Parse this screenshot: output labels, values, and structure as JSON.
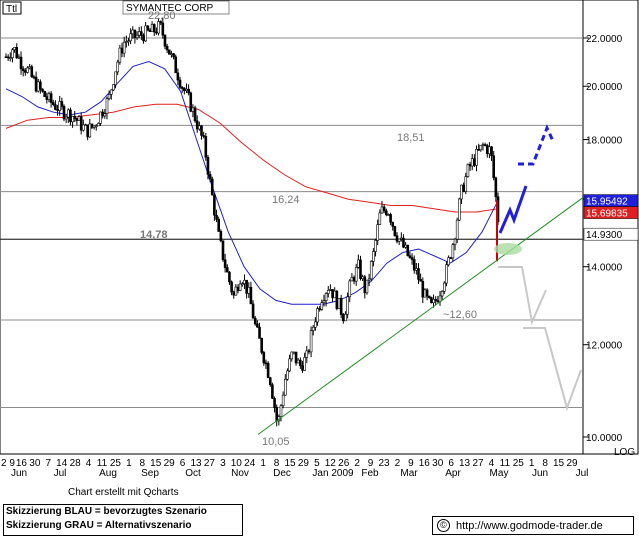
{
  "chart_data": {
    "type": "candlestick",
    "title": "SYMANTEC CORP",
    "header_box": "Ttl",
    "scale_label": "LOG",
    "y_ticks": [
      "22.0000",
      "20.0000",
      "18.0000",
      "16.0000",
      "14.0000",
      "12.0000",
      "10.0000"
    ],
    "ylim": [
      10.0,
      22.4
    ],
    "x_tick_numbers": [
      "2 9",
      "16",
      "30",
      "7",
      "14",
      "28",
      "4",
      "11",
      "25",
      "1",
      "8",
      "15",
      "29",
      "6",
      "13",
      "27",
      "3",
      "10",
      "24",
      "1",
      "8",
      "15",
      "29",
      "5",
      "12",
      "26",
      "2",
      "9",
      "23",
      "2",
      "9",
      "16",
      "30",
      "6",
      "13",
      "27",
      "4",
      "11",
      "25",
      "1",
      "8",
      "15",
      "29"
    ],
    "x_month_labels": [
      "Jun",
      "Jul",
      "Aug",
      "Sep",
      "Oct",
      "Nov",
      "Dec",
      "Jan 2009",
      "Feb",
      "Mar",
      "Apr",
      "May",
      "Jun",
      "Jul"
    ],
    "levels": [
      {
        "label": "22,80",
        "value": 22.8
      },
      {
        "label": "18,51",
        "value": 18.51
      },
      {
        "label": "16,24",
        "value": 16.24
      },
      {
        "label": "14,78",
        "value": 14.78
      },
      {
        "label": "~12,60",
        "value": 12.6
      },
      {
        "label": "10,05",
        "value": 10.05
      }
    ],
    "price_boxes": [
      {
        "label": "15.95492",
        "bg": "#1f1fdc",
        "fg": "#ffffff"
      },
      {
        "label": "15.69835",
        "bg": "#e02020",
        "fg": "#ffffff"
      },
      {
        "label": "14.9300",
        "bg": "#ffffff",
        "fg": "#000000"
      }
    ],
    "close_series": [
      21.2,
      21.6,
      21.0,
      20.6,
      20.1,
      19.7,
      19.4,
      19.2,
      19.0,
      18.9,
      18.6,
      18.3,
      18.5,
      19.0,
      19.5,
      20.8,
      21.8,
      22.0,
      22.1,
      22.2,
      22.3,
      22.5,
      21.6,
      20.8,
      20.0,
      19.4,
      18.6,
      17.8,
      16.2,
      14.8,
      13.9,
      13.2,
      13.8,
      13.3,
      12.4,
      11.8,
      11.2,
      10.2,
      11.2,
      11.8,
      11.5,
      11.7,
      12.6,
      13.2,
      13.5,
      13.1,
      12.7,
      13.6,
      14.0,
      13.3,
      14.3,
      15.6,
      15.7,
      15.0,
      14.6,
      14.2,
      13.8,
      13.2,
      12.9,
      13.3,
      13.9,
      14.8,
      16.2,
      17.0,
      17.4,
      17.8,
      17.6,
      15.4
    ],
    "ma_blue": [
      19.9,
      19.6,
      19.2,
      19.0,
      18.9,
      19.0,
      19.4,
      20.1,
      20.8,
      21.0,
      20.7,
      19.8,
      18.0,
      16.4,
      15.0,
      14.0,
      13.4,
      13.1,
      13.0,
      13.0,
      13.0,
      13.1,
      13.3,
      13.6,
      14.1,
      14.4,
      14.5,
      14.3,
      14.1,
      14.4,
      15.0,
      15.95
    ],
    "ma_red": [
      18.4,
      18.7,
      18.8,
      18.8,
      18.9,
      19.0,
      19.2,
      19.3,
      19.3,
      19.1,
      18.6,
      17.9,
      17.3,
      16.8,
      16.4,
      16.2,
      16.0,
      15.9,
      15.8,
      15.8,
      15.7,
      15.6,
      15.6,
      15.7
    ],
    "trendline": {
      "color": "#228b22"
    },
    "scenario_blue_color": "#1f1fdc",
    "scenario_gray_color": "#c8c8c8",
    "credit": "Chart erstellt mit Qcharts",
    "legend": [
      "Skizzierung BLAU = bevorzugtes Szenario",
      "Skizzierung GRAU = Alternativszenario"
    ],
    "copyright_symbol": "©",
    "url": "http://www.godmode-trader.de"
  }
}
